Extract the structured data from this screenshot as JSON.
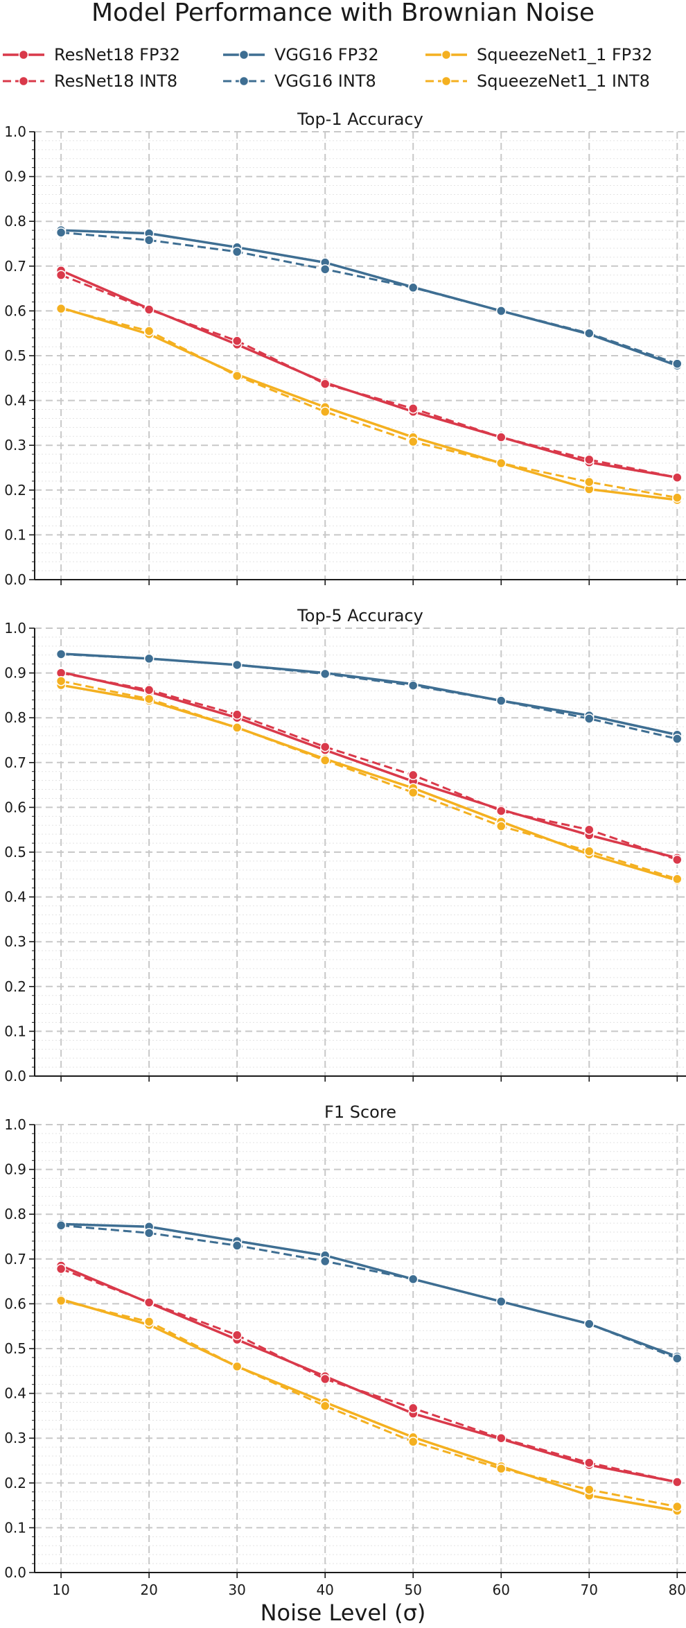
{
  "figure": {
    "title": "Model Performance with Brownian Noise",
    "xlabel": "Noise Level (σ)"
  },
  "colors": {
    "resnet": "#d9394a",
    "vgg": "#3e6e92",
    "squeeze": "#f4b020"
  },
  "legend": [
    {
      "label": "ResNet18 FP32",
      "color": "#d9394a",
      "style": "solid"
    },
    {
      "label": "VGG16 FP32",
      "color": "#3e6e92",
      "style": "solid"
    },
    {
      "label": "SqueezeNet1_1 FP32",
      "color": "#f4b020",
      "style": "solid"
    },
    {
      "label": "ResNet18 INT8",
      "color": "#d9394a",
      "style": "dashed"
    },
    {
      "label": "VGG16 INT8",
      "color": "#3e6e92",
      "style": "dashed"
    },
    {
      "label": "SqueezeNet1_1 INT8",
      "color": "#f4b020",
      "style": "dashed"
    }
  ],
  "chart_data": [
    {
      "type": "line",
      "title": "Top-1 Accuracy",
      "x": [
        10,
        20,
        30,
        40,
        50,
        60,
        70,
        80
      ],
      "xlim": [
        7,
        81
      ],
      "ylim": [
        0.0,
        1.0
      ],
      "yticks": [
        "0.0",
        "0.1",
        "0.2",
        "0.3",
        "0.4",
        "0.5",
        "0.6",
        "0.7",
        "0.8",
        "0.9",
        "1.0"
      ],
      "xticks": [
        "10",
        "20",
        "30",
        "40",
        "50",
        "60",
        "70",
        "80"
      ],
      "grid": true,
      "series": [
        {
          "name": "ResNet18 FP32",
          "color": "#d9394a",
          "style": "solid",
          "values": [
            0.69,
            0.605,
            0.525,
            0.44,
            0.375,
            0.318,
            0.262,
            0.228
          ]
        },
        {
          "name": "ResNet18 INT8",
          "color": "#d9394a",
          "style": "dashed",
          "values": [
            0.68,
            0.603,
            0.533,
            0.437,
            0.382,
            0.318,
            0.268,
            0.228
          ]
        },
        {
          "name": "VGG16 FP32",
          "color": "#3e6e92",
          "style": "solid",
          "values": [
            0.78,
            0.773,
            0.742,
            0.708,
            0.653,
            0.6,
            0.548,
            0.478
          ]
        },
        {
          "name": "VGG16 INT8",
          "color": "#3e6e92",
          "style": "dashed",
          "values": [
            0.775,
            0.758,
            0.732,
            0.693,
            0.652,
            0.6,
            0.55,
            0.482
          ]
        },
        {
          "name": "SqueezeNet1_1 FP32",
          "color": "#f4b020",
          "style": "solid",
          "values": [
            0.607,
            0.548,
            0.458,
            0.385,
            0.318,
            0.26,
            0.202,
            0.178
          ]
        },
        {
          "name": "SqueezeNet1_1 INT8",
          "color": "#f4b020",
          "style": "dashed",
          "values": [
            0.605,
            0.555,
            0.455,
            0.375,
            0.308,
            0.26,
            0.218,
            0.183
          ]
        }
      ]
    },
    {
      "type": "line",
      "title": "Top-5 Accuracy",
      "x": [
        10,
        20,
        30,
        40,
        50,
        60,
        70,
        80
      ],
      "xlim": [
        7,
        81
      ],
      "ylim": [
        0.0,
        1.0
      ],
      "yticks": [
        "0.0",
        "0.1",
        "0.2",
        "0.3",
        "0.4",
        "0.5",
        "0.6",
        "0.7",
        "0.8",
        "0.9",
        "1.0"
      ],
      "xticks": [
        "10",
        "20",
        "30",
        "40",
        "50",
        "60",
        "70",
        "80"
      ],
      "grid": true,
      "series": [
        {
          "name": "ResNet18 FP32",
          "color": "#d9394a",
          "style": "solid",
          "values": [
            0.902,
            0.858,
            0.8,
            0.728,
            0.658,
            0.595,
            0.538,
            0.487
          ]
        },
        {
          "name": "ResNet18 INT8",
          "color": "#d9394a",
          "style": "dashed",
          "values": [
            0.9,
            0.862,
            0.807,
            0.735,
            0.672,
            0.592,
            0.55,
            0.483
          ]
        },
        {
          "name": "VGG16 FP32",
          "color": "#3e6e92",
          "style": "solid",
          "values": [
            0.943,
            0.932,
            0.918,
            0.9,
            0.875,
            0.838,
            0.805,
            0.762
          ]
        },
        {
          "name": "VGG16 INT8",
          "color": "#3e6e92",
          "style": "dashed",
          "values": [
            0.942,
            0.932,
            0.918,
            0.898,
            0.872,
            0.838,
            0.798,
            0.753
          ]
        },
        {
          "name": "SqueezeNet1_1 FP32",
          "color": "#f4b020",
          "style": "solid",
          "values": [
            0.873,
            0.838,
            0.778,
            0.708,
            0.643,
            0.568,
            0.495,
            0.437
          ]
        },
        {
          "name": "SqueezeNet1_1 INT8",
          "color": "#f4b020",
          "style": "dashed",
          "values": [
            0.882,
            0.842,
            0.778,
            0.705,
            0.633,
            0.558,
            0.502,
            0.44
          ]
        }
      ]
    },
    {
      "type": "line",
      "title": "F1 Score",
      "x": [
        10,
        20,
        30,
        40,
        50,
        60,
        70,
        80
      ],
      "xlim": [
        7,
        81
      ],
      "ylim": [
        0.0,
        1.0
      ],
      "yticks": [
        "0.0",
        "0.1",
        "0.2",
        "0.3",
        "0.4",
        "0.5",
        "0.6",
        "0.7",
        "0.8",
        "0.9",
        "1.0"
      ],
      "xticks": [
        "10",
        "20",
        "30",
        "40",
        "50",
        "60",
        "70",
        "80"
      ],
      "grid": true,
      "series": [
        {
          "name": "ResNet18 FP32",
          "color": "#d9394a",
          "style": "solid",
          "values": [
            0.685,
            0.602,
            0.52,
            0.438,
            0.355,
            0.298,
            0.24,
            0.202
          ]
        },
        {
          "name": "ResNet18 INT8",
          "color": "#d9394a",
          "style": "dashed",
          "values": [
            0.678,
            0.603,
            0.53,
            0.432,
            0.367,
            0.3,
            0.245,
            0.202
          ]
        },
        {
          "name": "VGG16 FP32",
          "color": "#3e6e92",
          "style": "solid",
          "values": [
            0.778,
            0.772,
            0.74,
            0.708,
            0.655,
            0.605,
            0.555,
            0.482
          ]
        },
        {
          "name": "VGG16 INT8",
          "color": "#3e6e92",
          "style": "dashed",
          "values": [
            0.775,
            0.758,
            0.73,
            0.695,
            0.655,
            0.605,
            0.555,
            0.478
          ]
        },
        {
          "name": "SqueezeNet1_1 FP32",
          "color": "#f4b020",
          "style": "solid",
          "values": [
            0.61,
            0.553,
            0.46,
            0.38,
            0.302,
            0.237,
            0.172,
            0.138
          ]
        },
        {
          "name": "SqueezeNet1_1 INT8",
          "color": "#f4b020",
          "style": "dashed",
          "values": [
            0.607,
            0.56,
            0.46,
            0.372,
            0.292,
            0.232,
            0.185,
            0.147
          ]
        }
      ]
    }
  ]
}
